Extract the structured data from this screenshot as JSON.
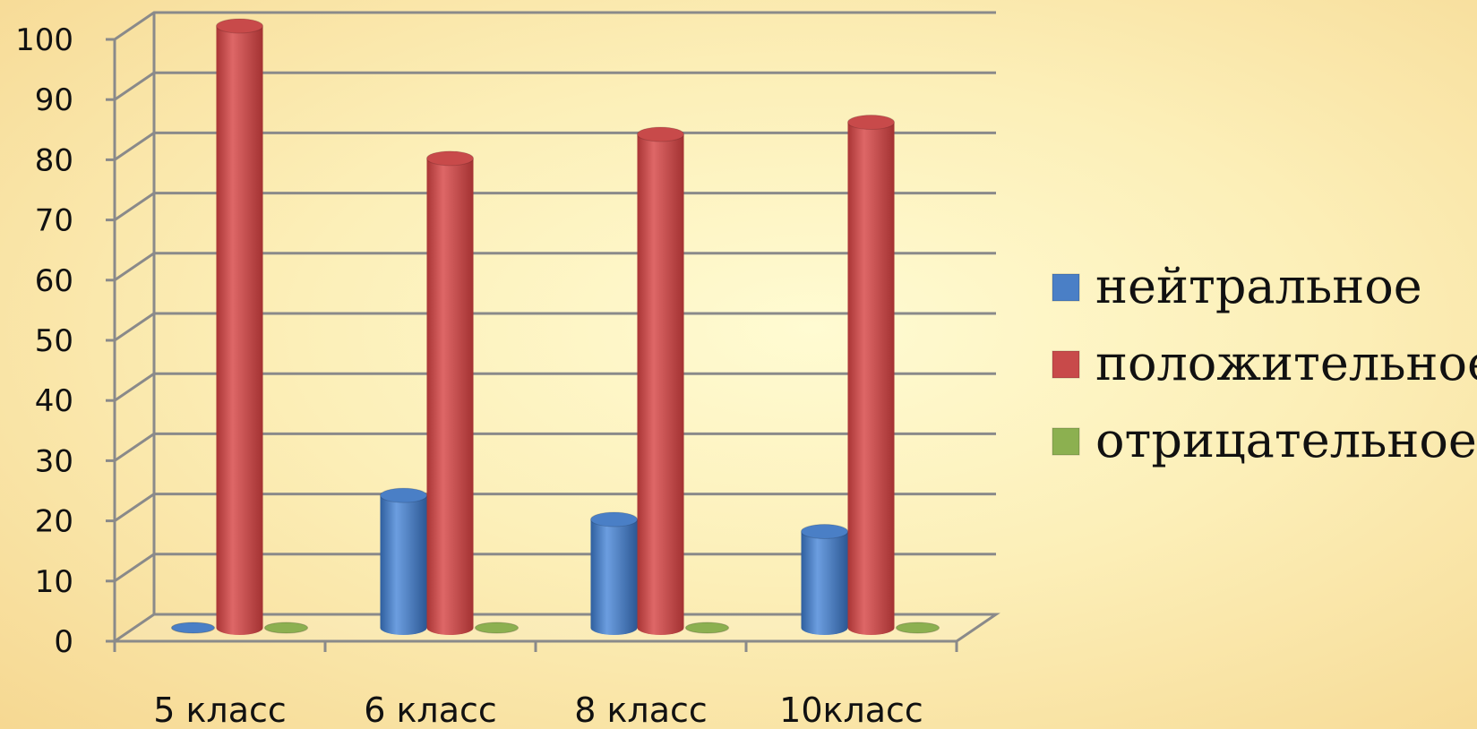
{
  "chart_data": {
    "type": "bar",
    "style": "3d-cylinder",
    "categories": [
      "5 класс",
      "6 класс",
      "8 класс",
      "10класс"
    ],
    "series": [
      {
        "name": "нейтральное",
        "color": "#4a7fc6",
        "values": [
          0,
          22,
          18,
          16
        ]
      },
      {
        "name": "положительное",
        "color": "#c84a4a",
        "values": [
          100,
          78,
          82,
          84
        ]
      },
      {
        "name": "отрицательное",
        "color": "#8cb050",
        "values": [
          0,
          0,
          0,
          0
        ]
      }
    ],
    "yticks": [
      "0",
      "10",
      "20",
      "30",
      "40",
      "50",
      "60",
      "70",
      "80",
      "90",
      "100"
    ],
    "ylim": [
      0,
      100
    ],
    "grid": true,
    "legend": "right"
  }
}
